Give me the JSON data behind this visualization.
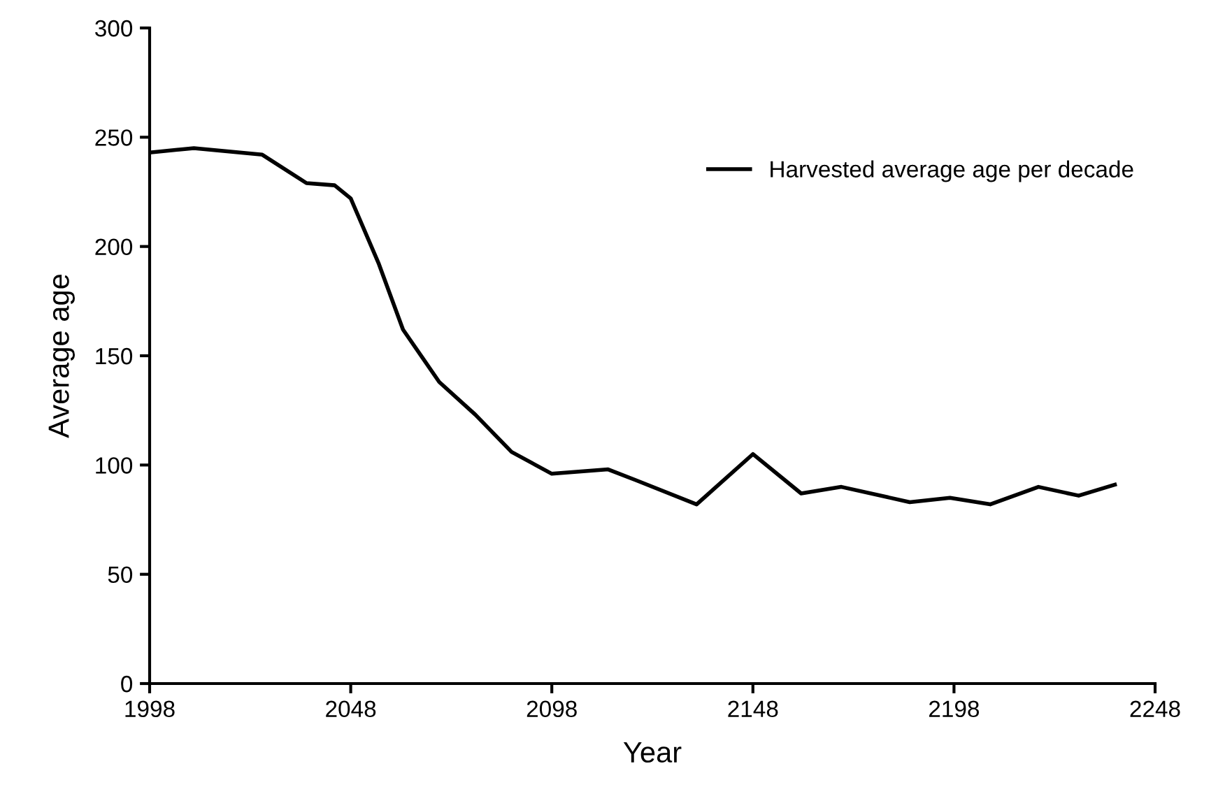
{
  "chart_data": {
    "type": "line",
    "xlabel": "Year",
    "ylabel": "Average age",
    "x": [
      1998,
      2009,
      2026,
      2037,
      2044,
      2048,
      2055,
      2061,
      2070,
      2079,
      2088,
      2098,
      2112,
      2119,
      2134,
      2148,
      2160,
      2170,
      2187,
      2197,
      2207,
      2219,
      2229,
      2238
    ],
    "series": [
      {
        "name": "Harvested average age per decade",
        "color": "#000000",
        "values": [
          243,
          245,
          242,
          229,
          228,
          222,
          192,
          162,
          138,
          123,
          106,
          96,
          98,
          93,
          82,
          105,
          87,
          90,
          83,
          85,
          82,
          90,
          86,
          91
        ]
      }
    ],
    "xlim": [
      1998,
      2248
    ],
    "xticks": [
      1998,
      2048,
      2098,
      2148,
      2198,
      2248
    ],
    "ylim": [
      0,
      300
    ],
    "yticks": [
      0,
      50,
      100,
      150,
      200,
      250,
      300
    ],
    "legend": "top right",
    "grid": false,
    "marker": "none",
    "line_style": "solid"
  }
}
